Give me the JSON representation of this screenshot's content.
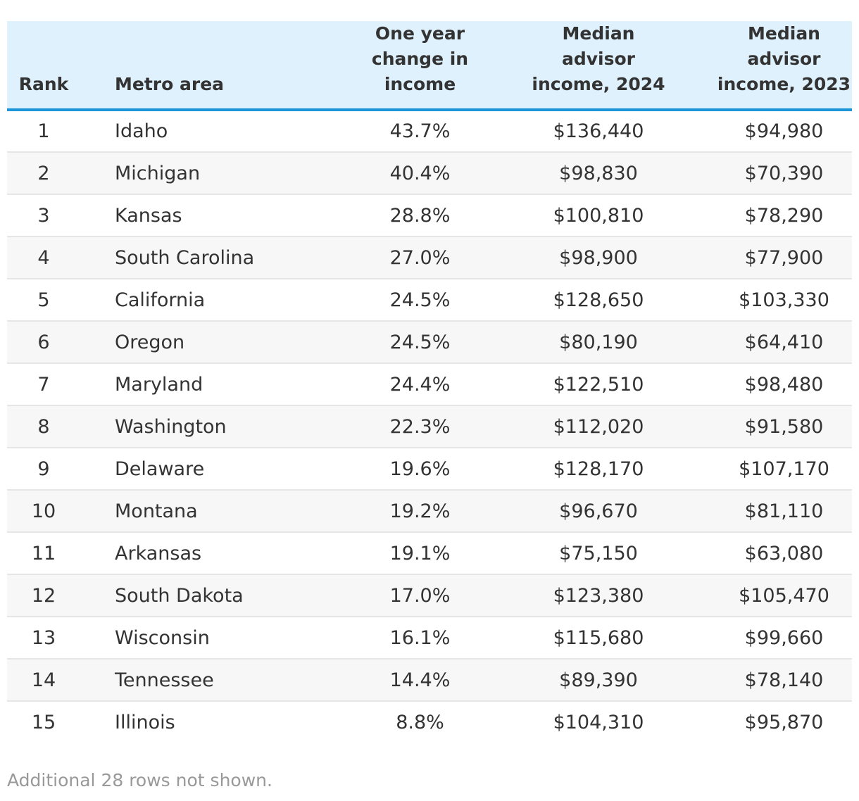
{
  "chart_data": {
    "type": "table",
    "columns": [
      "Rank",
      "Metro area",
      "One year change in income",
      "Median advisor income, 2024",
      "Median advisor income, 2023"
    ],
    "header_lines": [
      [
        "Rank"
      ],
      [
        "Metro area"
      ],
      [
        "One year",
        "change in",
        "income"
      ],
      [
        "Median",
        "advisor",
        "income, 2024"
      ],
      [
        "Median",
        "advisor",
        "income, 2023"
      ]
    ],
    "rows": [
      [
        "1",
        "Idaho",
        "43.7%",
        "$136,440",
        "$94,980"
      ],
      [
        "2",
        "Michigan",
        "40.4%",
        "$98,830",
        "$70,390"
      ],
      [
        "3",
        "Kansas",
        "28.8%",
        "$100,810",
        "$78,290"
      ],
      [
        "4",
        "South Carolina",
        "27.0%",
        "$98,900",
        "$77,900"
      ],
      [
        "5",
        "California",
        "24.5%",
        "$128,650",
        "$103,330"
      ],
      [
        "6",
        "Oregon",
        "24.5%",
        "$80,190",
        "$64,410"
      ],
      [
        "7",
        "Maryland",
        "24.4%",
        "$122,510",
        "$98,480"
      ],
      [
        "8",
        "Washington",
        "22.3%",
        "$112,020",
        "$91,580"
      ],
      [
        "9",
        "Delaware",
        "19.6%",
        "$128,170",
        "$107,170"
      ],
      [
        "10",
        "Montana",
        "19.2%",
        "$96,670",
        "$81,110"
      ],
      [
        "11",
        "Arkansas",
        "19.1%",
        "$75,150",
        "$63,080"
      ],
      [
        "12",
        "South Dakota",
        "17.0%",
        "$123,380",
        "$105,470"
      ],
      [
        "13",
        "Wisconsin",
        "16.1%",
        "$115,680",
        "$99,660"
      ],
      [
        "14",
        "Tennessee",
        "14.4%",
        "$89,390",
        "$78,140"
      ],
      [
        "15",
        "Illinois",
        "8.8%",
        "$104,310",
        "$95,870"
      ]
    ],
    "footnote": "Additional 28 rows not shown.",
    "colors": {
      "header_background": "#dff1fc",
      "header_rule": "#1c94d8",
      "stripe": "#f7f7f7",
      "footnote": "#999999"
    }
  }
}
